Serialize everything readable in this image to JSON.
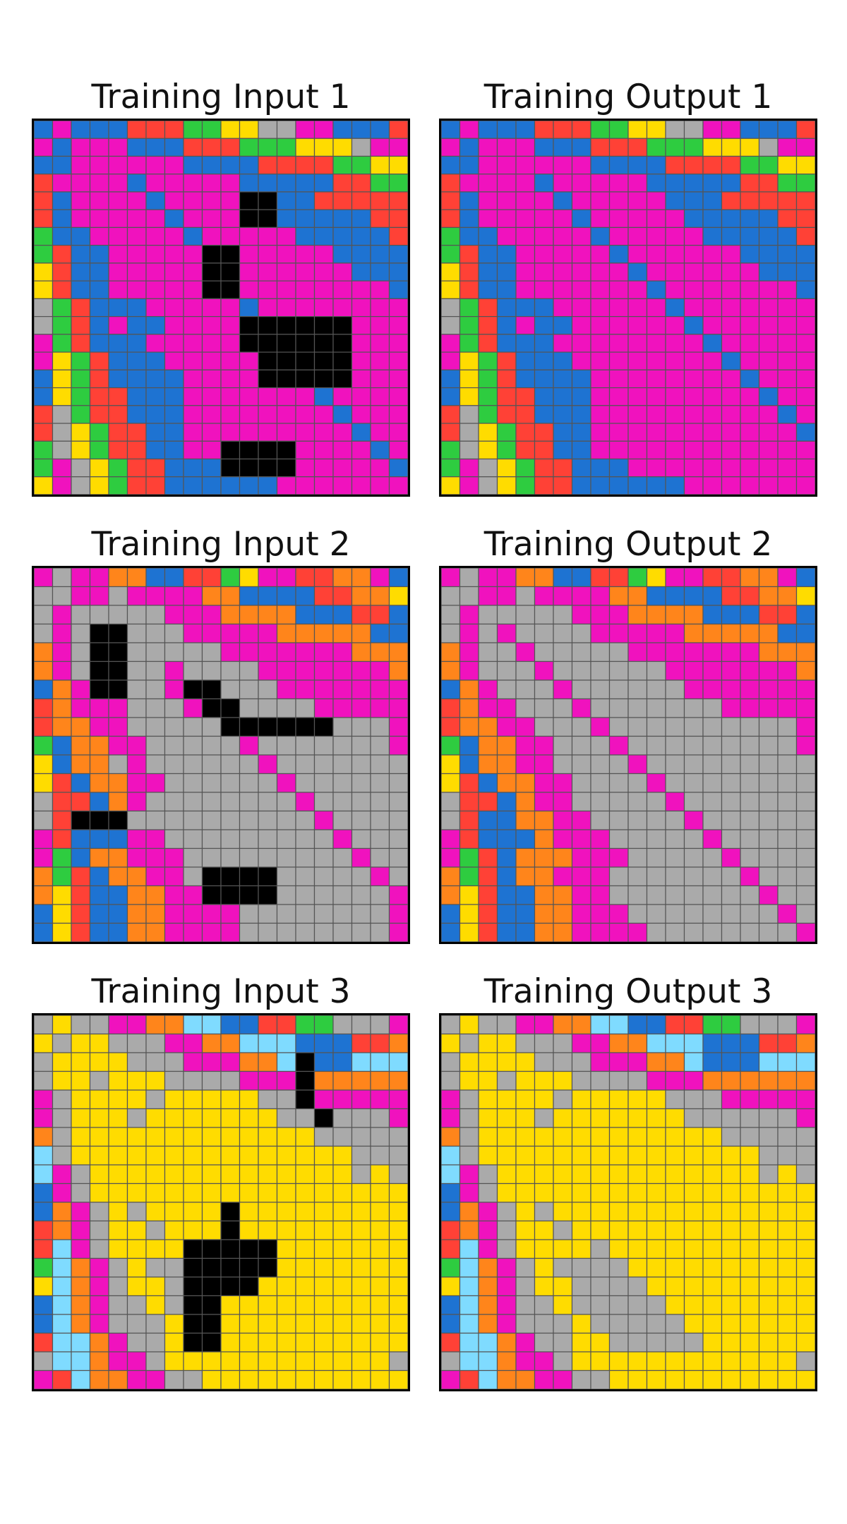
{
  "palette": {
    "0": "#000000",
    "1": "#1E73D2",
    "2": "#FF4136",
    "3": "#2ECC40",
    "4": "#FFDC00",
    "5": "#AAAAAA",
    "6": "#F012BE",
    "7": "#FF851B",
    "8": "#7FDBFF"
  },
  "cell_line_color": "#555555",
  "pairs": [
    {
      "input": {
        "title": "Training Input 1",
        "grid": [
          "16111222334455661112",
          "61666111222333444566",
          "11666666111122223344",
          "26666166666111112233",
          "21666616666001122222",
          "21666661666001111122",
          "31166666166666111112",
          "32116666600666661111",
          "42116666600666666111",
          "42116666600666666661",
          "53211166666166666666",
          "53216116666000000666",
          "63211166666000000666",
          "64321116666600000666",
          "14321111666600000666",
          "14322111666666616666",
          "25322111666666661666",
          "25432211666666666166",
          "35432211660000666616",
          "36543221110000666661",
          "46543221111116666666"
        ]
      },
      "output": {
        "title": "Training Output 1",
        "grid": [
          "16111222334455661112",
          "61666111222333444566",
          "11666666111122223344",
          "26666166666111112233",
          "21666616666611122222",
          "21666661666661111122",
          "31166666166666111112",
          "32116666616666661111",
          "42116666661666666111",
          "42116666666166666661",
          "53211166666616666666",
          "53216116666661666666",
          "63211166666666166666",
          "64321116666666616666",
          "14321111666666661666",
          "14322111666666666166",
          "25322111666666666616",
          "25432211666666666661",
          "35432211666666666666",
          "36543221116666666666",
          "46543221111116666666"
        ]
      }
    },
    {
      "input": {
        "title": "Training Input 2",
        "grid": [
          "65667711223466227761",
          "55665666677111122774",
          "56555556667777111221",
          "56500555666667777711",
          "76500555556666666777",
          "76500556555566666667",
          "17600556005556666666",
          "27666555600555566666",
          "27766555550000005556",
          "31776655555655555556",
          "41775655555565555555",
          "42177665555556555555",
          "52217655555555655555",
          "52000555555555565555",
          "62111665555555556555",
          "63177666555555555655",
          "73217766500005555565",
          "74211776600005555556",
          "14211776666555555556",
          "14211776666555555556"
        ]
      },
      "output": {
        "title": "Training Output 2",
        "grid": [
          "65667711223466227761",
          "55665666677111122774",
          "56555556667777111221",
          "56565555666667777711",
          "76556555556666666777",
          "76555655555566666667",
          "17655565555556666666",
          "27665556555555566666",
          "27766555655555555556",
          "31776655565555555556",
          "41776655556555555555",
          "42177665555655555555",
          "52217665555565555555",
          "52117766555556555555",
          "62111766655555655555",
          "63217776665555565555",
          "73217766655555556555",
          "74211776655555555655",
          "14211776665555555565",
          "14211776666555555556"
        ]
      }
    },
    {
      "input": {
        "title": "Training Input 3",
        "grid": [
          "54556677881122335556",
          "45445556677888111227",
          "54444555666778011888",
          "54454445555666077777",
          "65444454444455066666",
          "65444544444445505556",
          "75444444444444455555",
          "85444444444444444555",
          "86544444444444444545",
          "16544444444444444444",
          "17654544440444444444",
          "27654454440444444444",
          "28654444000004444444",
          "38765455000004444444",
          "48765445000044444444",
          "18765545004444444444",
          "18765554004444444444",
          "28876554004444444444",
          "58876654444444444445",
          "62877665544444444444"
        ]
      },
      "output": {
        "title": "Training Output 3",
        "grid": [
          "54556677881122335556",
          "45445556677888111227",
          "54444555666778111888",
          "54454445555666777777",
          "65444454444455566666",
          "65444544444445555556",
          "75444444444444455555",
          "85444444444444444555",
          "86544444444444444545",
          "16544444444444444444",
          "17654544444444444444",
          "27654454444444444444",
          "28654444544444444444",
          "38765455554444444444",
          "48765445555444444444",
          "18765545555544444444",
          "18765554555554444444",
          "28876554455555444444",
          "58876654444444444445",
          "62877665544444444444"
        ]
      }
    }
  ]
}
